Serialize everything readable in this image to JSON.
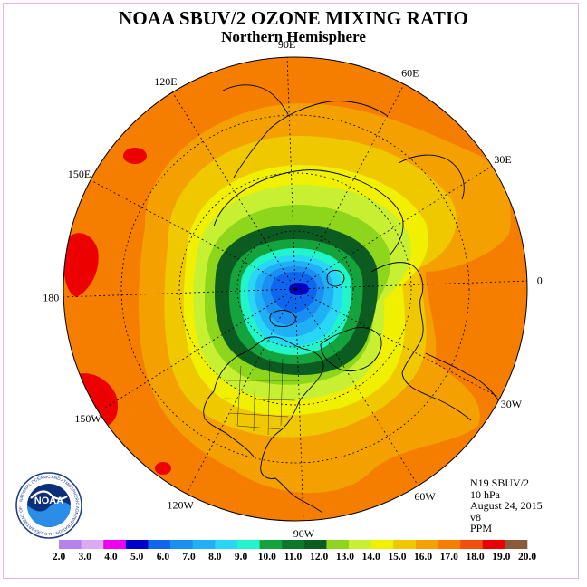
{
  "title": "NOAA SBUV/2 OZONE MIXING RATIO",
  "subtitle": "Northern Hemisphere",
  "info": {
    "satellite": "N19 SBUV/2",
    "level": "10 hPa",
    "date": "August 24, 2015",
    "version": "v8",
    "units": "PPM"
  },
  "logo_text": "NOAA",
  "logo_ring_text": "NATIONAL OCEANIC AND ATMOSPHERIC ADMINISTRATION · U.S. DEPARTMENT OF COMMERCE",
  "longitude_labels": [
    {
      "text": "90E",
      "lon": 90
    },
    {
      "text": "60E",
      "lon": 60
    },
    {
      "text": "30E",
      "lon": 30
    },
    {
      "text": "0",
      "lon": 0
    },
    {
      "text": "30W",
      "lon": -30
    },
    {
      "text": "60W",
      "lon": -60
    },
    {
      "text": "90W",
      "lon": -90
    },
    {
      "text": "120W",
      "lon": -120
    },
    {
      "text": "150W",
      "lon": -150
    },
    {
      "text": "180",
      "lon": 180
    },
    {
      "text": "150E",
      "lon": 150
    },
    {
      "text": "120E",
      "lon": 120
    }
  ],
  "projection": {
    "type": "polar stereographic",
    "hemisphere": "north",
    "pole_view": "north pole centered",
    "south_boundary_lat": 0
  },
  "colorbar": {
    "ticks": [
      "2.0",
      "3.0",
      "4.0",
      "5.0",
      "6.0",
      "7.0",
      "8.0",
      "9.0",
      "10.0",
      "11.0",
      "12.0",
      "13.0",
      "14.0",
      "15.0",
      "16.0",
      "17.0",
      "18.0",
      "19.0",
      "20.0"
    ],
    "colors": [
      "#b782ee",
      "#dcaaf4",
      "#ee00ee",
      "#0000cc",
      "#0f66ee",
      "#1b8ef2",
      "#20b0f6",
      "#28d6f6",
      "#22f5cc",
      "#14a33c",
      "#0a7a2a",
      "#0c5c22",
      "#8ed61c",
      "#c8f032",
      "#f0f000",
      "#f0c800",
      "#f3a000",
      "#f57d00",
      "#f24f0c",
      "#ec0000",
      "#8a5a3c"
    ]
  },
  "field_bands": [
    {
      "value_range": "4.0-5.0",
      "color": "#0000cc",
      "feature": "pole minimum"
    },
    {
      "value_range": "5.0-6.0",
      "color": "#0f66ee"
    },
    {
      "value_range": "6.0-7.0",
      "color": "#1b8ef2"
    },
    {
      "value_range": "7.0-8.0",
      "color": "#20b0f6"
    },
    {
      "value_range": "8.0-9.0",
      "color": "#28d6f6"
    },
    {
      "value_range": "9.0-10.0",
      "color": "#22f5cc"
    },
    {
      "value_range": "10.0-11.0",
      "color": "#14a33c"
    },
    {
      "value_range": "11.0-12.0",
      "color": "#0c5c22"
    },
    {
      "value_range": "12.0-13.0",
      "color": "#8ed61c"
    },
    {
      "value_range": "13.0-14.0",
      "color": "#c8f032"
    },
    {
      "value_range": "14.0-15.0",
      "color": "#f0f000"
    },
    {
      "value_range": "15.0-16.0",
      "color": "#f0c800"
    },
    {
      "value_range": "16.0-17.0",
      "color": "#f3a000"
    },
    {
      "value_range": "17.0-18.0",
      "color": "#f57d00"
    },
    {
      "value_range": "18.0-19.0",
      "color": "#ec0000",
      "feature": "isolated maxima near 180 / 150W"
    }
  ]
}
